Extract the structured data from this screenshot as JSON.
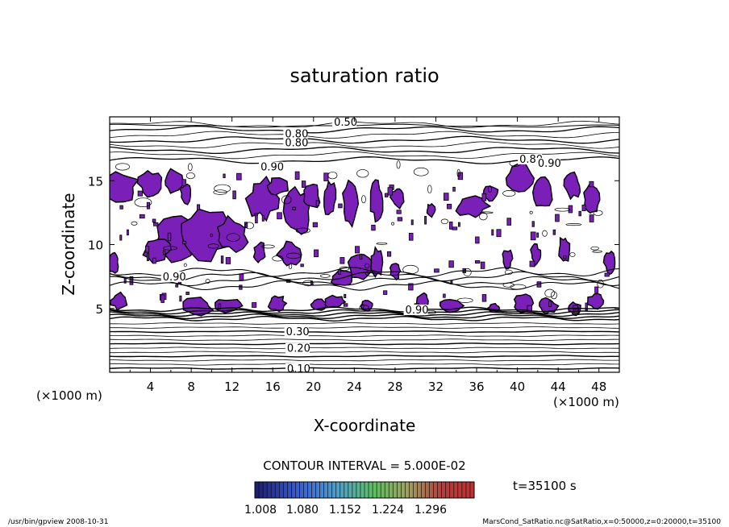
{
  "chart_data": {
    "type": "contour",
    "title": "saturation ratio",
    "xlabel": "X-coordinate",
    "ylabel": "Z-coordinate",
    "x_unit": "(×1000 m)",
    "z_unit": "(×1000 m)",
    "xlim": [
      0,
      50
    ],
    "ylim": [
      0,
      20
    ],
    "x_ticks": [
      4,
      8,
      12,
      16,
      20,
      24,
      28,
      32,
      36,
      40,
      44,
      48
    ],
    "y_ticks": [
      5,
      10,
      15
    ],
    "contour_interval_text": "CONTOUR INTERVAL = 5.000E-02",
    "time_text": "t=35100 s",
    "colorbar_ticks": [
      "1.008",
      "1.080",
      "1.152",
      "1.224",
      "1.296"
    ],
    "contour_labels": [
      {
        "text": "0.50",
        "x": 22,
        "z": 19.3
      },
      {
        "text": "0.80",
        "x": 17.2,
        "z": 18.4
      },
      {
        "text": "0.80",
        "x": 17.2,
        "z": 17.7
      },
      {
        "text": "0.90",
        "x": 14.8,
        "z": 15.8
      },
      {
        "text": "0.80",
        "x": 40.2,
        "z": 16.4
      },
      {
        "text": "0.90",
        "x": 42.0,
        "z": 16.1
      },
      {
        "text": "0.90",
        "x": 5.2,
        "z": 7.2
      },
      {
        "text": "0.90",
        "x": 29.0,
        "z": 4.6
      },
      {
        "text": "0.30",
        "x": 17.3,
        "z": 2.9
      },
      {
        "text": "0.20",
        "x": 17.4,
        "z": 1.6
      },
      {
        "text": "0.10",
        "x": 17.4,
        "z": 0.0
      }
    ],
    "supersaturated_fill_color": "#7a1fb8",
    "colorbar_colors": [
      "#1c1c6e",
      "#3a5fd0",
      "#4fa0c8",
      "#5fbf5f",
      "#9fa060",
      "#b04040",
      "#c03030"
    ]
  },
  "footer": {
    "left": "/usr/bin/gpview   2008-10-31",
    "right": "MarsCond_SatRatio.nc@SatRatio,x=0:50000,z=0:20000,t=35100"
  }
}
